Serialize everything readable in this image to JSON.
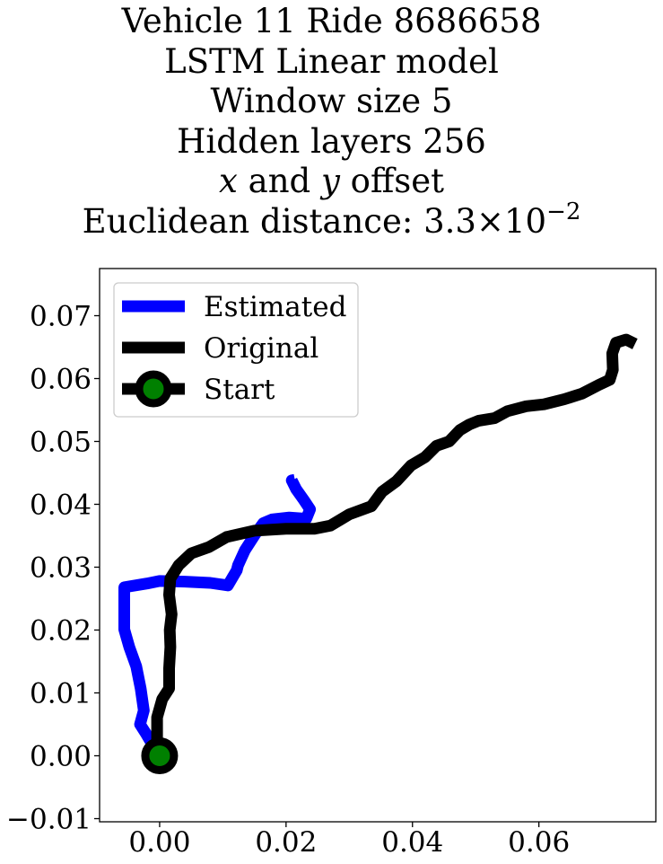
{
  "title": {
    "line1": "Vehicle 11 Ride 8686658",
    "line2": "LSTM Linear model",
    "line3": "Window size 5",
    "line4": "Hidden layers 256",
    "line5_x": "x",
    "line5_and": " and ",
    "line5_y": "y",
    "line5_rest": " offset",
    "line6_prefix": "Euclidean distance: 3.3",
    "line6_times": "×",
    "line6_base": "10",
    "line6_exp": "−2"
  },
  "chart_data": {
    "type": "line",
    "xlim": [
      -0.0095,
      0.0785
    ],
    "ylim": [
      -0.0105,
      0.0775
    ],
    "x_ticks": [
      0.0,
      0.02,
      0.04,
      0.06
    ],
    "x_tick_labels": [
      "0.00",
      "0.02",
      "0.04",
      "0.06"
    ],
    "y_ticks": [
      -0.01,
      0.0,
      0.01,
      0.02,
      0.03,
      0.04,
      0.05,
      0.06,
      0.07
    ],
    "y_tick_labels": [
      "−0.01",
      "0.00",
      "0.01",
      "0.02",
      "0.03",
      "0.04",
      "0.05",
      "0.06",
      "0.07"
    ],
    "grid": false,
    "legend_position": "upper-left",
    "legend": [
      "Estimated",
      "Original",
      "Start"
    ],
    "colors": {
      "estimated": "#0000ff",
      "original": "#000000",
      "start_marker": "#008000"
    },
    "series": [
      {
        "name": "Estimated",
        "points": [
          [
            0.0,
            0.0
          ],
          [
            -0.0011,
            0.0017
          ],
          [
            -0.0022,
            0.0036
          ],
          [
            -0.0031,
            0.005
          ],
          [
            -0.0025,
            0.0072
          ],
          [
            -0.003,
            0.0107
          ],
          [
            -0.0037,
            0.0142
          ],
          [
            -0.0048,
            0.0173
          ],
          [
            -0.0056,
            0.0201
          ],
          [
            -0.0056,
            0.0223
          ],
          [
            -0.0056,
            0.0248
          ],
          [
            -0.0056,
            0.0268
          ],
          [
            -0.002,
            0.0274
          ],
          [
            0.0,
            0.0278
          ],
          [
            0.004,
            0.0277
          ],
          [
            0.008,
            0.0275
          ],
          [
            0.0108,
            0.0271
          ],
          [
            0.0122,
            0.0295
          ],
          [
            0.0124,
            0.0303
          ],
          [
            0.0135,
            0.0327
          ],
          [
            0.0151,
            0.0352
          ],
          [
            0.0164,
            0.037
          ],
          [
            0.0178,
            0.0376
          ],
          [
            0.0205,
            0.0379
          ],
          [
            0.0232,
            0.0377
          ],
          [
            0.0238,
            0.0392
          ],
          [
            0.0228,
            0.0407
          ],
          [
            0.0216,
            0.0424
          ],
          [
            0.0209,
            0.0438
          ],
          [
            0.0214,
            0.0439
          ]
        ]
      },
      {
        "name": "Original",
        "points": [
          [
            0.0,
            0.0
          ],
          [
            -0.0004,
            0.0026
          ],
          [
            -0.0004,
            0.0061
          ],
          [
            0.0004,
            0.009
          ],
          [
            0.0015,
            0.0107
          ],
          [
            0.0015,
            0.0139
          ],
          [
            0.0017,
            0.0173
          ],
          [
            0.0016,
            0.02
          ],
          [
            0.0019,
            0.0225
          ],
          [
            0.0015,
            0.0256
          ],
          [
            0.0017,
            0.0282
          ],
          [
            0.003,
            0.0303
          ],
          [
            0.005,
            0.0322
          ],
          [
            0.0078,
            0.0332
          ],
          [
            0.0106,
            0.0348
          ],
          [
            0.015,
            0.0358
          ],
          [
            0.02,
            0.0361
          ],
          [
            0.0245,
            0.0361
          ],
          [
            0.027,
            0.0366
          ],
          [
            0.03,
            0.0384
          ],
          [
            0.0335,
            0.0397
          ],
          [
            0.0352,
            0.042
          ],
          [
            0.0375,
            0.0437
          ],
          [
            0.0398,
            0.0462
          ],
          [
            0.042,
            0.0475
          ],
          [
            0.0438,
            0.0493
          ],
          [
            0.0458,
            0.05
          ],
          [
            0.0475,
            0.0518
          ],
          [
            0.049,
            0.0527
          ],
          [
            0.0505,
            0.0533
          ],
          [
            0.053,
            0.0537
          ],
          [
            0.055,
            0.0548
          ],
          [
            0.058,
            0.0556
          ],
          [
            0.0608,
            0.0559
          ],
          [
            0.064,
            0.0567
          ],
          [
            0.0668,
            0.0576
          ],
          [
            0.0695,
            0.059
          ],
          [
            0.0712,
            0.0598
          ],
          [
            0.0717,
            0.0614
          ],
          [
            0.0716,
            0.064
          ],
          [
            0.0722,
            0.0657
          ],
          [
            0.0738,
            0.0662
          ],
          [
            0.0752,
            0.0655
          ]
        ]
      }
    ],
    "start_point": {
      "name": "Start",
      "x": 0.0,
      "y": 0.0
    }
  }
}
